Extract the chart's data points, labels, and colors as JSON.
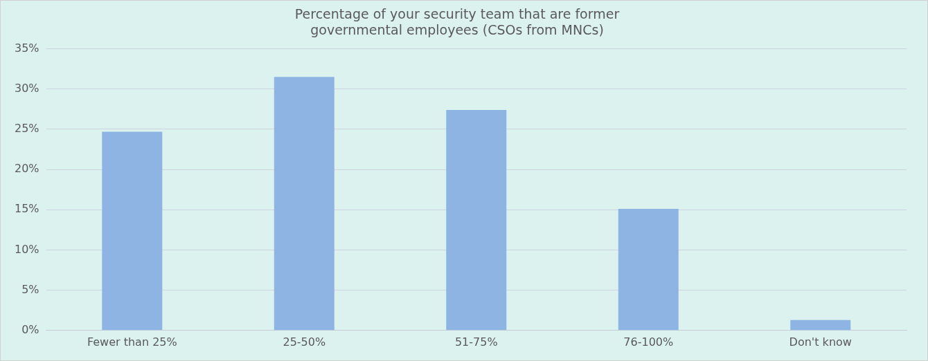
{
  "chart_data": {
    "type": "bar",
    "title": "Percentage of your security team that are former governmental employees (CSOs from MNCs)",
    "categories": [
      "Fewer than 25%",
      "25-50%",
      "51-75%",
      "76-100%",
      "Don't know"
    ],
    "values": [
      24.7,
      31.5,
      27.4,
      15.1,
      1.3
    ],
    "color": "#8db4e2",
    "ylim": [
      0,
      35
    ],
    "yticks": [
      {
        "value": 0,
        "label": "0%"
      },
      {
        "value": 5,
        "label": "5%"
      },
      {
        "value": 10,
        "label": "10%"
      },
      {
        "value": 15,
        "label": "15%"
      },
      {
        "value": 20,
        "label": "20%"
      },
      {
        "value": 25,
        "label": "25%"
      },
      {
        "value": 30,
        "label": "30%"
      },
      {
        "value": 35,
        "label": "35%"
      }
    ],
    "grid": "y",
    "legend": false
  }
}
